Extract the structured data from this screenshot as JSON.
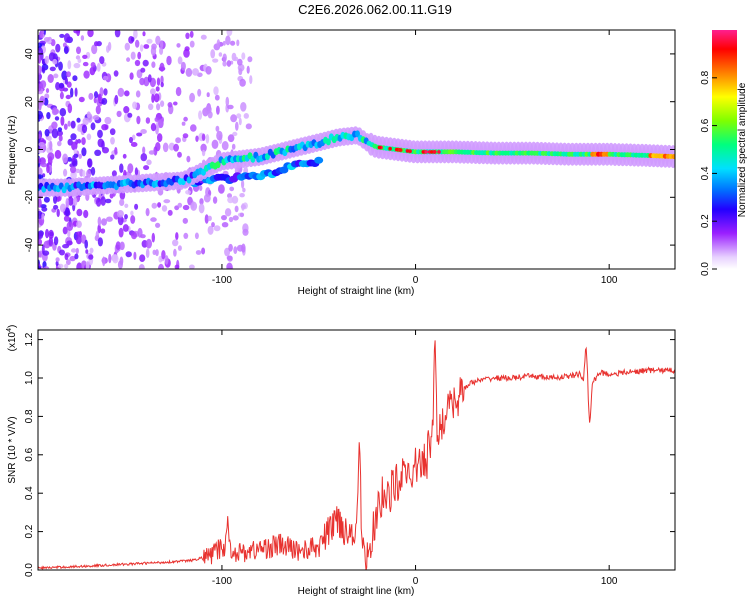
{
  "title": "C2E6.2026.062.00.11.G19",
  "chart_data": [
    {
      "type": "heatmap",
      "name": "spectrogram",
      "xlabel": "Height of straight line (km)",
      "ylabel": "Frequency (Hz)",
      "xlim": [
        -195,
        134
      ],
      "ylim": [
        -50,
        50
      ],
      "xticks": [
        -100,
        0,
        100
      ],
      "yticks": [
        -40,
        -20,
        0,
        20,
        40
      ],
      "colorbar": {
        "label": "Normalized spectral amplitude",
        "range": [
          0,
          1
        ],
        "ticks": [
          0.0,
          0.2,
          0.4,
          0.6,
          0.8
        ],
        "tick_labels": [
          "0.0",
          "0.2",
          "0.4",
          "0.6",
          "0.8"
        ]
      },
      "ridge": {
        "x": [
          -195,
          -180,
          -160,
          -140,
          -120,
          -110,
          -100,
          -90,
          -80,
          -70,
          -60,
          -50,
          -40,
          -30,
          -25,
          -20,
          -10,
          0,
          10,
          20,
          40,
          60,
          80,
          100,
          120,
          134
        ],
        "y": [
          -16,
          -16,
          -15,
          -14,
          -13,
          -9,
          -5,
          -4,
          -3,
          -1,
          1,
          3,
          5,
          6,
          3,
          1,
          0,
          -1,
          -1,
          -1,
          -1.5,
          -1.5,
          -2,
          -2,
          -2.5,
          -3
        ]
      },
      "lower_branch": {
        "x": [
          -180,
          -160,
          -140,
          -120,
          -100,
          -90,
          -80,
          -70,
          -60,
          -50
        ],
        "y": [
          -16,
          -15,
          -14,
          -14,
          -12,
          -12,
          -11,
          -9,
          -6,
          -5
        ]
      }
    },
    {
      "type": "line",
      "name": "snr",
      "xlabel": "Height of straight line (km)",
      "ylabel": "SNR (10 * V/V)",
      "scale_label": "(x10",
      "scale_exp": "4",
      "xlim": [
        -195,
        134
      ],
      "ylim": [
        0,
        1.25
      ],
      "xticks": [
        -100,
        0,
        100
      ],
      "yticks": [
        0.0,
        0.2,
        0.4,
        0.6,
        0.8,
        1.0,
        1.2
      ],
      "ytick_labels": [
        "0.0",
        "0.2",
        "0.4",
        "0.6",
        "0.8",
        "1.0",
        "1.2"
      ],
      "color": "#e8322f",
      "series": [
        {
          "name": "SNR",
          "x": [
            -195,
            -170,
            -150,
            -130,
            -115,
            -105,
            -100,
            -95,
            -90,
            -80,
            -70,
            -60,
            -50,
            -45,
            -40,
            -35,
            -30,
            -25,
            -20,
            -15,
            -10,
            -5,
            0,
            5,
            10,
            15,
            20,
            25,
            30,
            40,
            50,
            60,
            70,
            80,
            85,
            90,
            95,
            100,
            110,
            120,
            134
          ],
          "y": [
            0.01,
            0.02,
            0.03,
            0.04,
            0.05,
            0.08,
            0.12,
            0.1,
            0.09,
            0.11,
            0.13,
            0.1,
            0.12,
            0.2,
            0.28,
            0.18,
            0.25,
            0.05,
            0.3,
            0.4,
            0.45,
            0.5,
            0.52,
            0.58,
            0.7,
            0.8,
            0.88,
            0.95,
            0.98,
            1.0,
            1.0,
            1.01,
            1.0,
            1.01,
            1.02,
            0.95,
            1.03,
            1.02,
            1.03,
            1.04,
            1.04
          ]
        }
      ],
      "spikes": [
        {
          "x": 10,
          "y": 1.25
        },
        {
          "x": 88,
          "y": 1.18
        },
        {
          "x": 90,
          "y": 0.75
        },
        {
          "x": -29,
          "y": 0.7
        },
        {
          "x": -97,
          "y": 0.28
        }
      ]
    }
  ]
}
